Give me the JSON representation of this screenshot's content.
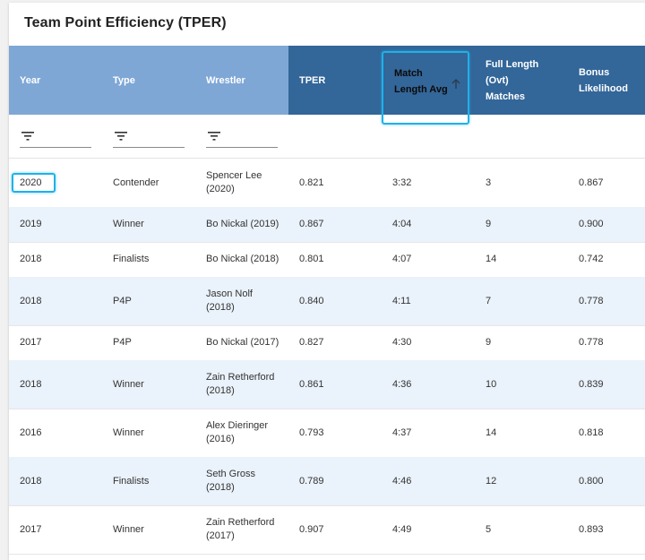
{
  "title": "Team Point Efficiency (TPER)",
  "columns": [
    {
      "key": "year",
      "label": "Year"
    },
    {
      "key": "type",
      "label": "Type"
    },
    {
      "key": "wrestler",
      "label": "Wrestler"
    },
    {
      "key": "tper",
      "label": "TPER"
    },
    {
      "key": "mla",
      "label": "Match Length Avg",
      "label_line1": "Match",
      "label_line2": "Length Avg"
    },
    {
      "key": "flm",
      "label": "Full Length (Ovt) Matches",
      "label_line1": "Full Length",
      "label_line2": "(Ovt)",
      "label_line3": "Matches"
    },
    {
      "key": "bl",
      "label": "Bonus Likelihood",
      "label_line1": "Bonus",
      "label_line2": "Likelihood"
    }
  ],
  "sort": {
    "column": "mla",
    "direction": "ascending",
    "icon": "arrow-up-icon"
  },
  "filter_icon": "filter-icon",
  "colors": {
    "header_light": "#7ea7d6",
    "header_dark": "#336699",
    "highlight": "#1fb1e8",
    "row_alt": "#eaf2fb"
  },
  "rows": [
    {
      "year": "2020",
      "type": "Contender",
      "wrestler_1": "Spencer Lee",
      "wrestler_2": "(2020)",
      "tper": "0.821",
      "mla": "3:32",
      "flm": "3",
      "bl": "0.867"
    },
    {
      "year": "2019",
      "type": "Winner",
      "wrestler_1": "Bo Nickal (2019)",
      "wrestler_2": "",
      "tper": "0.867",
      "mla": "4:04",
      "flm": "9",
      "bl": "0.900"
    },
    {
      "year": "2018",
      "type": "Finalists",
      "wrestler_1": "Bo Nickal (2018)",
      "wrestler_2": "",
      "tper": "0.801",
      "mla": "4:07",
      "flm": "14",
      "bl": "0.742"
    },
    {
      "year": "2018",
      "type": "P4P",
      "wrestler_1": "Jason Nolf",
      "wrestler_2": "(2018)",
      "tper": "0.840",
      "mla": "4:11",
      "flm": "7",
      "bl": "0.778"
    },
    {
      "year": "2017",
      "type": "P4P",
      "wrestler_1": "Bo Nickal (2017)",
      "wrestler_2": "",
      "tper": "0.827",
      "mla": "4:30",
      "flm": "9",
      "bl": "0.778"
    },
    {
      "year": "2018",
      "type": "Winner",
      "wrestler_1": "Zain Retherford",
      "wrestler_2": "(2018)",
      "tper": "0.861",
      "mla": "4:36",
      "flm": "10",
      "bl": "0.839"
    },
    {
      "year": "2016",
      "type": "Winner",
      "wrestler_1": "Alex Dieringer",
      "wrestler_2": "(2016)",
      "tper": "0.793",
      "mla": "4:37",
      "flm": "14",
      "bl": "0.818"
    },
    {
      "year": "2018",
      "type": "Finalists",
      "wrestler_1": "Seth Gross",
      "wrestler_2": "(2018)",
      "tper": "0.789",
      "mla": "4:46",
      "flm": "12",
      "bl": "0.800"
    },
    {
      "year": "2017",
      "type": "Winner",
      "wrestler_1": "Zain Retherford",
      "wrestler_2": "(2017)",
      "tper": "0.907",
      "mla": "4:49",
      "flm": "5",
      "bl": "0.893"
    }
  ]
}
